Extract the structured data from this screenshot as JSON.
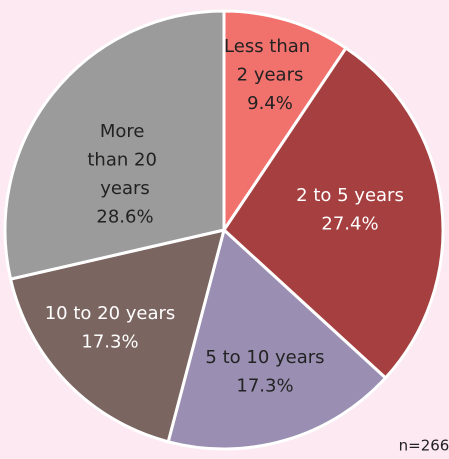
{
  "chart_data": {
    "type": "pie",
    "categories": [
      "Less than 2 years",
      "2 to 5 years",
      "5 to 10 years",
      "10 to 20 years",
      "More than 20 years"
    ],
    "values": [
      9.4,
      27.4,
      17.3,
      17.3,
      28.6
    ],
    "value_labels": [
      "9.4%",
      "27.4%",
      "17.3%",
      "17.3%",
      "28.6%"
    ],
    "colors": [
      "#f1716d",
      "#a63f3f",
      "#9a8fb2",
      "#7b6560",
      "#9b9b9b"
    ],
    "annotation": "n=266"
  }
}
